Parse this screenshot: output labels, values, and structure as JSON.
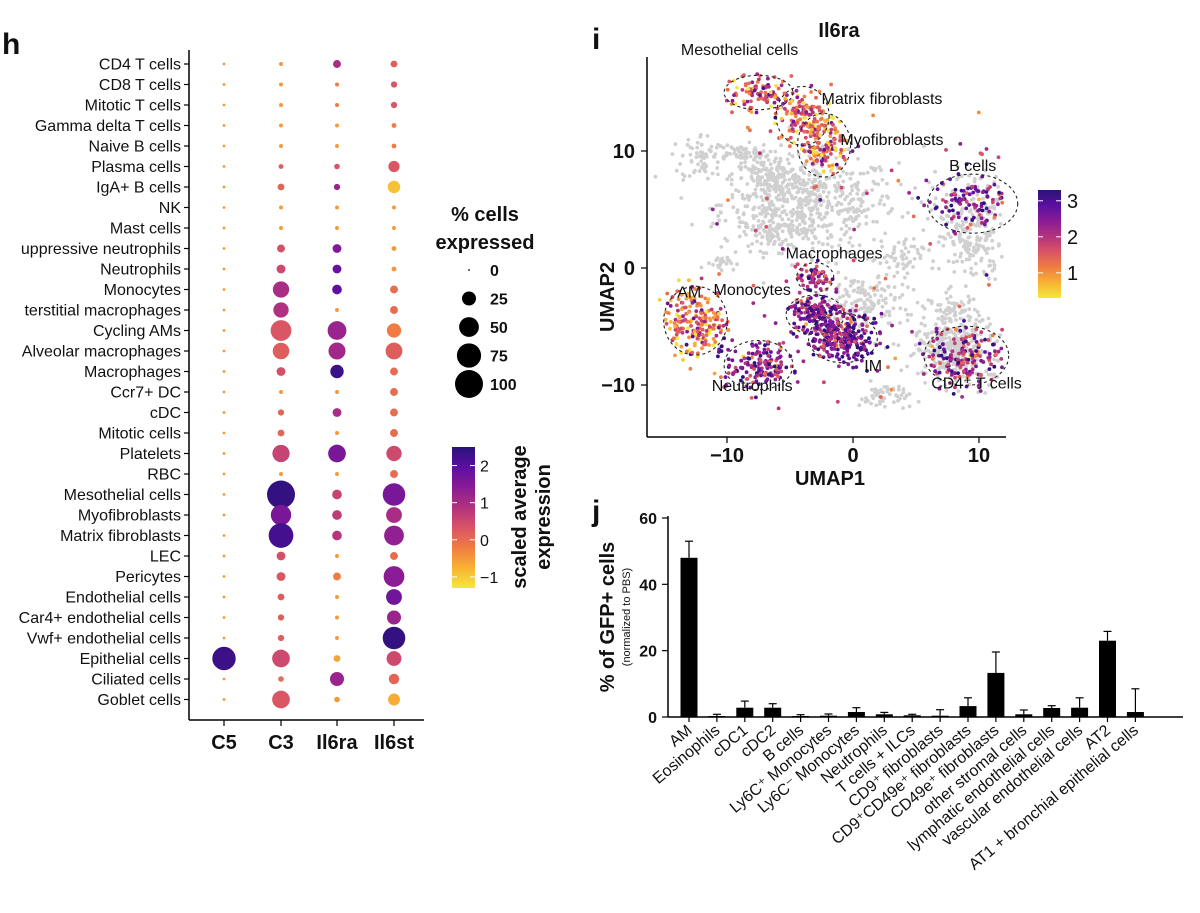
{
  "panel_letters": {
    "h": "h",
    "i": "i",
    "j": "j"
  },
  "colors": {
    "scale": [
      "#f5e83a",
      "#f9b233",
      "#ef7d42",
      "#d95466",
      "#b2327e",
      "#8a1b96",
      "#5b0fa0",
      "#2a1279"
    ],
    "bar": "#000000",
    "umap_background": "#d0d0d0",
    "axis": "#000000"
  },
  "chart_data": [
    {
      "type": "dotplot",
      "panel": "h",
      "genes": [
        "C5",
        "C3",
        "Il6ra",
        "Il6st"
      ],
      "cell_types": [
        "CD4 T cells",
        "CD8 T cells",
        "Mitotic T cells",
        "Gamma delta T cells",
        "Naive B cells",
        "Plasma cells",
        "IgA+ B cells",
        "NK",
        "Mast cells",
        "uppressive neutrophils",
        "Neutrophils",
        "Monocytes",
        "terstitial macrophages",
        "Cycling AMs",
        "Alveolar macrophages",
        "Macrophages",
        "Ccr7+ DC",
        "cDC",
        "Mitotic cells",
        "Platelets",
        "RBC",
        "Mesothelial cells",
        "Myofibroblasts",
        "Matrix fibroblasts",
        "LEC",
        "Pericytes",
        "Endothelial cells",
        "Car4+ endothelial cells",
        "Vwf+ endothelial cells",
        "Epithelial cells",
        "Ciliated cells",
        "Goblet cells"
      ],
      "pct_expressed": [
        [
          1,
          2,
          8,
          6
        ],
        [
          1,
          2,
          2,
          5
        ],
        [
          1,
          2,
          2,
          5
        ],
        [
          1,
          2,
          2,
          3
        ],
        [
          1,
          2,
          2,
          3
        ],
        [
          1,
          3,
          4,
          16
        ],
        [
          1,
          6,
          5,
          20
        ],
        [
          1,
          2,
          2,
          2
        ],
        [
          1,
          2,
          2,
          2
        ],
        [
          1,
          8,
          10,
          3
        ],
        [
          1,
          10,
          10,
          3
        ],
        [
          1,
          34,
          12,
          8
        ],
        [
          1,
          30,
          2,
          8
        ],
        [
          1,
          55,
          45,
          26
        ],
        [
          1,
          35,
          37,
          36
        ],
        [
          1,
          10,
          23,
          8
        ],
        [
          1,
          2,
          2,
          8
        ],
        [
          1,
          5,
          10,
          8
        ],
        [
          1,
          6,
          2,
          8
        ],
        [
          1,
          38,
          40,
          30
        ],
        [
          1,
          2,
          2,
          8
        ],
        [
          1,
          100,
          12,
          65
        ],
        [
          1,
          53,
          12,
          32
        ],
        [
          1,
          78,
          12,
          50
        ],
        [
          1,
          10,
          2,
          8
        ],
        [
          1,
          10,
          8,
          55
        ],
        [
          1,
          6,
          2,
          32
        ],
        [
          1,
          5,
          2,
          25
        ],
        [
          1,
          5,
          2,
          65
        ],
        [
          70,
          40,
          6,
          28
        ],
        [
          1,
          4,
          25,
          14
        ],
        [
          1,
          40,
          4,
          18
        ]
      ],
      "scaled_expression": [
        [
          -0.5,
          -0.5,
          1.0,
          0.2
        ],
        [
          -0.5,
          -0.5,
          -0.2,
          0.3
        ],
        [
          -0.5,
          -0.5,
          -0.2,
          0.3
        ],
        [
          -0.5,
          -0.5,
          -0.5,
          -0.2
        ],
        [
          -0.5,
          -0.5,
          -0.5,
          -0.2
        ],
        [
          -0.5,
          0.2,
          0.3,
          0.3
        ],
        [
          -0.5,
          0.1,
          1.2,
          -0.9
        ],
        [
          -0.5,
          -0.5,
          -0.5,
          -0.5
        ],
        [
          -0.5,
          -0.5,
          -0.5,
          -0.5
        ],
        [
          -0.5,
          0.4,
          1.5,
          -0.5
        ],
        [
          -0.5,
          0.5,
          1.8,
          -0.5
        ],
        [
          -0.5,
          1.0,
          1.9,
          0.0
        ],
        [
          -0.5,
          0.9,
          -0.5,
          0.0
        ],
        [
          -0.5,
          0.3,
          1.2,
          -0.2
        ],
        [
          -0.5,
          0.2,
          1.1,
          0.2
        ],
        [
          -0.5,
          0.4,
          2.3,
          0.0
        ],
        [
          -0.5,
          -0.5,
          -0.5,
          0.0
        ],
        [
          -0.5,
          0.1,
          1.0,
          0.0
        ],
        [
          -0.5,
          0.1,
          -0.5,
          0.0
        ],
        [
          -0.5,
          0.6,
          1.6,
          0.5
        ],
        [
          -0.5,
          -0.5,
          -0.5,
          0.0
        ],
        [
          -0.5,
          2.4,
          0.6,
          1.6
        ],
        [
          -0.5,
          1.6,
          0.7,
          1.0
        ],
        [
          -0.5,
          2.2,
          0.8,
          1.3
        ],
        [
          -0.5,
          0.4,
          -0.5,
          0.0
        ],
        [
          -0.5,
          0.3,
          -0.2,
          1.4
        ],
        [
          -0.5,
          0.2,
          -0.5,
          1.7
        ],
        [
          -0.5,
          0.2,
          -0.5,
          1.2
        ],
        [
          -0.5,
          0.2,
          -0.5,
          2.4
        ],
        [
          2.3,
          0.5,
          -0.6,
          0.5
        ],
        [
          -0.5,
          0.0,
          1.2,
          0.1
        ],
        [
          -0.5,
          0.3,
          -0.5,
          -0.7
        ]
      ],
      "size_legend": {
        "title_line1": "% cells",
        "title_line2": "expressed",
        "values": [
          0,
          25,
          50,
          75,
          100
        ],
        "labels": [
          "0",
          "25",
          "50",
          "75",
          "100"
        ]
      },
      "color_legend": {
        "title_line1": "scaled average",
        "title_line2": "expression",
        "range": [
          -1.3,
          2.5
        ],
        "ticks": [
          -1,
          0,
          1,
          2
        ],
        "tick_labels": [
          "−1",
          "0",
          "1",
          "2"
        ]
      }
    },
    {
      "type": "scatter",
      "panel": "i",
      "title": "Il6ra",
      "xlabel": "UMAP1",
      "ylabel": "UMAP2",
      "xlim": [
        -15.5,
        12.5
      ],
      "ylim": [
        -14.5,
        18
      ],
      "xticks": [
        -10,
        0,
        10
      ],
      "xtick_labels": [
        "−10",
        "0",
        "10"
      ],
      "yticks": [
        -10,
        0,
        10
      ],
      "ytick_labels": [
        "−10",
        "0",
        "10"
      ],
      "clusters": [
        {
          "label": "Mesothelial cells",
          "x": -7.5,
          "y": 15.0,
          "sx": 1.3,
          "sy": 0.7,
          "n": 90,
          "expr": 1.6
        },
        {
          "label": "Matrix fibroblasts",
          "x": -4.0,
          "y": 13.0,
          "sx": 1.0,
          "sy": 1.2,
          "n": 120,
          "expr": 1.5
        },
        {
          "label": "Myofibroblasts",
          "x": -2.3,
          "y": 10.5,
          "sx": 1.0,
          "sy": 1.3,
          "n": 120,
          "expr": 1.4
        },
        {
          "label": "B cells",
          "x": 9.5,
          "y": 5.5,
          "sx": 1.7,
          "sy": 1.2,
          "n": 110,
          "expr": 2.4,
          "bg": true
        },
        {
          "label": "Macrophages",
          "x": -3.0,
          "y": -0.8,
          "sx": 0.7,
          "sy": 0.6,
          "n": 60,
          "expr": 2.2
        },
        {
          "label": "AM",
          "x": -12.5,
          "y": -4.5,
          "sx": 1.2,
          "sy": 1.4,
          "n": 200,
          "expr": 1.3
        },
        {
          "label": "Monocytes",
          "x": -3.0,
          "y": -4.0,
          "sx": 1.1,
          "sy": 0.8,
          "n": 150,
          "expr": 2.4
        },
        {
          "label": "IM",
          "x": -0.8,
          "y": -6.0,
          "sx": 1.3,
          "sy": 1.0,
          "n": 260,
          "expr": 2.5
        },
        {
          "label": "Neutrophils",
          "x": -7.5,
          "y": -8.3,
          "sx": 1.3,
          "sy": 1.0,
          "n": 150,
          "expr": 2.4
        },
        {
          "label": "CD4⁺ T cells",
          "x": 9.0,
          "y": -7.5,
          "sx": 1.6,
          "sy": 1.2,
          "n": 160,
          "expr": 2.3,
          "bg": true
        }
      ],
      "legend": {
        "range": [
          0.3,
          3.3
        ],
        "ticks": [
          1,
          2,
          3
        ],
        "tick_labels": [
          "1",
          "2",
          "3"
        ]
      }
    },
    {
      "type": "bar",
      "panel": "j",
      "ylabel": "% of GFP+ cells",
      "ylabel_sub": "(normalized to PBS)",
      "ylim": [
        0,
        60
      ],
      "yticks": [
        0,
        20,
        40,
        60
      ],
      "ytick_labels": [
        "0",
        "20",
        "40",
        "60"
      ],
      "categories": [
        "AM",
        "Eosinophils",
        "cDC1",
        "cDC2",
        "B cells",
        "Ly6C⁺ Monocytes",
        "Ly6C⁻ Monocytes",
        "Neutrophils",
        "T cells + ILCs",
        "CD9⁺ fibroblasts",
        "CD9⁺CD49e⁺ fibroblasts",
        "CD49e⁺ fibroblasts",
        "other stromal cells",
        "lymphatic endothelial cells",
        "vascular endothelial cells",
        "AT2",
        "AT1 + bronchial epithelial cells"
      ],
      "values": [
        48,
        0.3,
        2.8,
        2.8,
        0.3,
        0.4,
        1.5,
        0.8,
        0.5,
        0.4,
        3.3,
        13.3,
        0.8,
        2.7,
        2.8,
        23,
        1.5
      ],
      "errors": [
        5,
        0.5,
        2.0,
        1.2,
        0.4,
        0.5,
        1.3,
        0.6,
        0.3,
        1.8,
        2.5,
        6.3,
        1.3,
        0.7,
        3.0,
        2.8,
        7.0
      ]
    }
  ]
}
